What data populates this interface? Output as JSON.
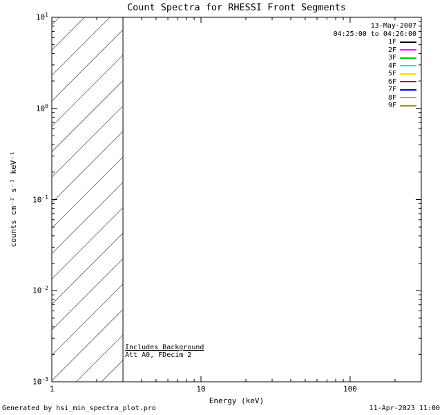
{
  "footer": {
    "generated_by": "Generated by hsi_min_spectra_plot.pro",
    "timestamp": "11-Apr-2023 11:00"
  },
  "chart_data": {
    "type": "line",
    "title": "Count Spectra for RHESSI Front Segments",
    "xlabel": "Energy (keV)",
    "ylabel": "counts cm⁻² s⁻¹ keV⁻¹",
    "xscale": "log",
    "yscale": "log",
    "xlim": [
      1,
      300
    ],
    "ylim": [
      0.001,
      10
    ],
    "grid": false,
    "date_label": "13-May-2007",
    "time_label": "04:25:00 to 04:26:00",
    "annotations": [
      "Includes Background",
      "Att A0, FDecim 2"
    ],
    "x_ticks": [
      {
        "value": 1,
        "label": "1"
      },
      {
        "value": 10,
        "label": "10"
      },
      {
        "value": 100,
        "label": "100"
      }
    ],
    "y_ticks": [
      {
        "value": 10,
        "mantissa": "10",
        "exp": "1"
      },
      {
        "value": 1,
        "mantissa": "10",
        "exp": "0"
      },
      {
        "value": 0.1,
        "mantissa": "10",
        "exp": "-1"
      },
      {
        "value": 0.01,
        "mantissa": "10",
        "exp": "-2"
      },
      {
        "value": 0.001,
        "mantissa": "10",
        "exp": "-3"
      }
    ],
    "hatched_region": {
      "x_start": 1,
      "x_end": 3
    },
    "series": [],
    "legend_position": "top-right",
    "legend": [
      {
        "label": "1F",
        "color": "#000000"
      },
      {
        "label": "2F",
        "color": "#ff00ff"
      },
      {
        "label": "3F",
        "color": "#00cc00"
      },
      {
        "label": "4F",
        "color": "#00e8e8"
      },
      {
        "label": "5F",
        "color": "#f0e000"
      },
      {
        "label": "6F",
        "color": "#aa0000"
      },
      {
        "label": "7F",
        "color": "#0000ee"
      },
      {
        "label": "8F",
        "color": "#ff9000"
      },
      {
        "label": "9F",
        "color": "#989800"
      }
    ]
  }
}
